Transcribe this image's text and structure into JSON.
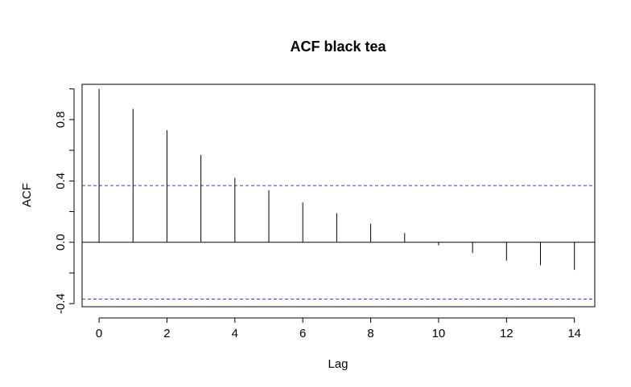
{
  "chart_data": {
    "type": "bar",
    "title": "ACF black tea",
    "xlabel": "Lag",
    "ylabel": "ACF",
    "x": [
      0,
      1,
      2,
      3,
      4,
      5,
      6,
      7,
      8,
      9,
      10,
      11,
      12,
      13,
      14
    ],
    "values": [
      1.0,
      0.87,
      0.73,
      0.57,
      0.42,
      0.34,
      0.26,
      0.19,
      0.12,
      0.06,
      -0.02,
      -0.07,
      -0.12,
      -0.15,
      -0.18
    ],
    "xlim": [
      -0.5,
      14.6
    ],
    "ylim": [
      -0.42,
      1.03
    ],
    "xticks": [
      "0",
      "2",
      "4",
      "6",
      "8",
      "10",
      "12",
      "14"
    ],
    "yticks": [
      "-0.4",
      "0.0",
      "0.4",
      "0.8"
    ],
    "confidence_bounds": [
      0.37,
      -0.37
    ],
    "grid": false,
    "colors": {
      "bars": "#000000",
      "confidence_lines": "#3333ff",
      "zero_line": "#000000",
      "frame": "#000000"
    }
  }
}
